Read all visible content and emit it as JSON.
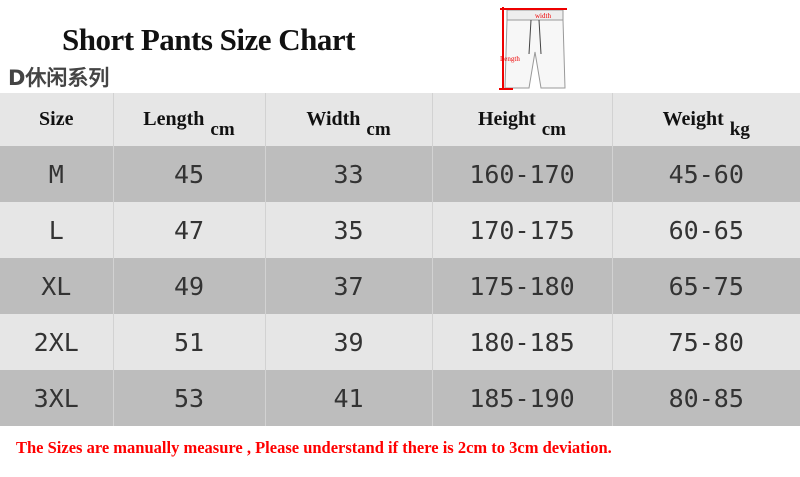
{
  "title": "Short Pants Size Chart",
  "series_label": "D休闲系列",
  "diagram": {
    "width_label": "width",
    "length_label": "Length"
  },
  "table": {
    "headers": [
      {
        "label": "Size",
        "unit": ""
      },
      {
        "label": "Length",
        "unit": "cm"
      },
      {
        "label": "Width",
        "unit": "cm"
      },
      {
        "label": "Height",
        "unit": "cm"
      },
      {
        "label": "Weight",
        "unit": "kg"
      }
    ],
    "rows": [
      [
        "M",
        "45",
        "33",
        "160-170",
        "45-60"
      ],
      [
        "L",
        "47",
        "35",
        "170-175",
        "60-65"
      ],
      [
        "XL",
        "49",
        "37",
        "175-180",
        "65-75"
      ],
      [
        "2XL",
        "51",
        "39",
        "180-185",
        "75-80"
      ],
      [
        "3XL",
        "53",
        "41",
        "185-190",
        "80-85"
      ]
    ]
  },
  "note": "The Sizes are manually measure , Please understand if  there is 2cm to 3cm deviation.",
  "colors": {
    "note": "#ff0000",
    "row_dark": "#bdbdbd",
    "row_light": "#e6e6e6"
  }
}
